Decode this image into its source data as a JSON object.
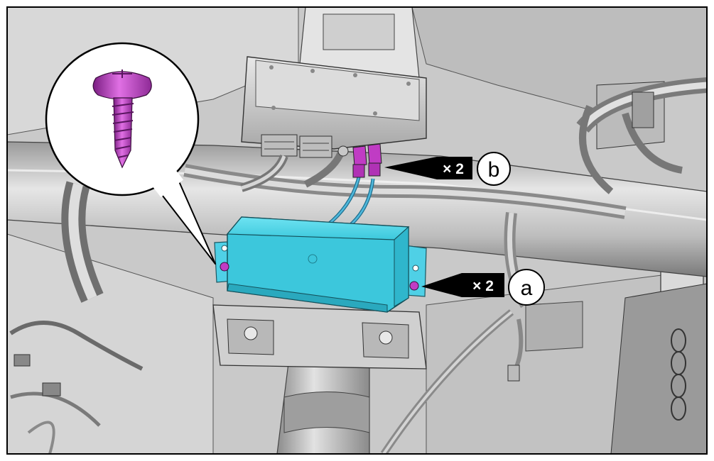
{
  "callouts": {
    "a": {
      "letter": "a",
      "count": "× 2"
    },
    "b": {
      "letter": "b",
      "count": "× 2"
    }
  },
  "colors": {
    "module": "#49d6ea",
    "fastener": "#c03cc4",
    "ecu": "#d2d2d2",
    "background": "#cfcfcf",
    "outline": "#000000"
  },
  "icons": {
    "screw": "screw-icon",
    "arrow": "arrow-pointer-icon"
  }
}
